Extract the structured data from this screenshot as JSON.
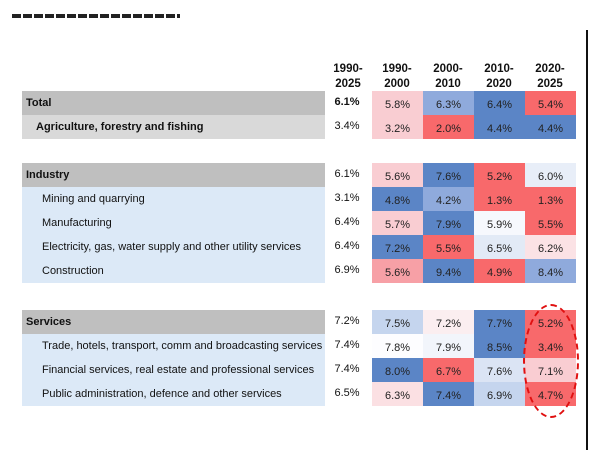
{
  "chart_data": {
    "type": "heatmap",
    "columns": [
      "1990-2025",
      "1990-2000",
      "2000-2010",
      "2010-2020",
      "2020-2025"
    ],
    "rows": [
      {
        "label": "Total",
        "kind": "main",
        "total": "6.1%",
        "values": [
          "5.8%",
          "6.3%",
          "6.4%",
          "5.4%"
        ],
        "colors": [
          "#f9cdd2",
          "#8faadc",
          "#5b85c6",
          "#f8696b"
        ]
      },
      {
        "label": "Agriculture, forestry and fishing",
        "kind": "agri",
        "total": "3.4%",
        "values": [
          "3.2%",
          "2.0%",
          "4.4%",
          "4.4%"
        ],
        "colors": [
          "#f9cdd2",
          "#f8696b",
          "#5b85c6",
          "#5b85c6"
        ]
      },
      {
        "label": "Industry",
        "kind": "main",
        "total": "6.1%",
        "values": [
          "5.6%",
          "7.6%",
          "5.2%",
          "6.0%"
        ],
        "colors": [
          "#f9cdd2",
          "#5b85c6",
          "#f8696b",
          "#e8eef8"
        ]
      },
      {
        "label": "Mining and quarrying",
        "kind": "sub",
        "total": "3.1%",
        "values": [
          "4.8%",
          "4.2%",
          "1.3%",
          "1.3%"
        ],
        "colors": [
          "#5b85c6",
          "#8faadc",
          "#f8696b",
          "#f8696b"
        ]
      },
      {
        "label": "Manufacturing",
        "kind": "sub",
        "total": "6.4%",
        "values": [
          "5.7%",
          "7.9%",
          "5.9%",
          "5.5%"
        ],
        "colors": [
          "#f9cdd2",
          "#5b85c6",
          "#f6f8fd",
          "#f8696b"
        ]
      },
      {
        "label": "Electricity, gas, water supply and other utility services",
        "kind": "sub",
        "total": "6.4%",
        "values": [
          "7.2%",
          "5.5%",
          "6.5%",
          "6.2%"
        ],
        "colors": [
          "#5b85c6",
          "#f8696b",
          "#e2eaf6",
          "#fbe2e5"
        ]
      },
      {
        "label": "Construction",
        "kind": "sub",
        "total": "6.9%",
        "values": [
          "5.6%",
          "9.4%",
          "4.9%",
          "8.4%"
        ],
        "colors": [
          "#f7a0a6",
          "#5b85c6",
          "#f8696b",
          "#8faadc"
        ]
      },
      {
        "label": "Services",
        "kind": "main",
        "total": "7.2%",
        "values": [
          "7.5%",
          "7.2%",
          "7.7%",
          "5.2%"
        ],
        "colors": [
          "#c5d5ee",
          "#fbeef0",
          "#5b85c6",
          "#f8696b"
        ]
      },
      {
        "label": "Trade, hotels, transport, comm and broadcasting services",
        "kind": "sub",
        "total": "7.4%",
        "values": [
          "7.8%",
          "7.9%",
          "8.5%",
          "3.4%"
        ],
        "colors": [
          "#fdfdff",
          "#f2f5fb",
          "#5b85c6",
          "#f8696b"
        ]
      },
      {
        "label": "Financial services, real estate and professional services",
        "kind": "sub",
        "total": "7.4%",
        "values": [
          "8.0%",
          "6.7%",
          "7.6%",
          "7.1%"
        ],
        "colors": [
          "#5b85c6",
          "#f8696b",
          "#dbe4f4",
          "#f9cdd2"
        ]
      },
      {
        "label": "Public administration, defence and other services",
        "kind": "sub",
        "total": "6.5%",
        "values": [
          "6.3%",
          "7.4%",
          "6.9%",
          "4.7%"
        ],
        "colors": [
          "#fbe0e3",
          "#5b85c6",
          "#c5d5ee",
          "#f8696b"
        ]
      }
    ],
    "highlight": {
      "column": "2020-2025",
      "rows": [
        "Services",
        "Trade, hotels, transport, comm and broadcasting services",
        "Financial services, real estate and professional services",
        "Public administration, defence and other services"
      ],
      "style": "red dashed ellipse"
    }
  }
}
